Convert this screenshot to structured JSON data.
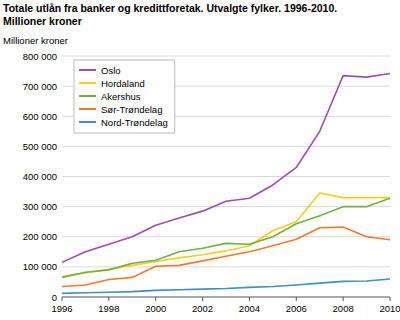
{
  "chart_data": {
    "type": "line",
    "title": "Totale utlån fra banker og kredittforetak. Utvalgte fylker. 1996-2010.",
    "subtitle": "Millioner kroner",
    "y_label": "Millioner kroner",
    "x": [
      1996,
      1997,
      1998,
      1999,
      2000,
      2001,
      2002,
      2003,
      2004,
      2005,
      2006,
      2007,
      2008,
      2009,
      2010
    ],
    "xlim": [
      1996,
      2010
    ],
    "xticks": [
      1996,
      1998,
      2000,
      2002,
      2004,
      2006,
      2008,
      2010
    ],
    "ylim": [
      0,
      800000
    ],
    "yticks": [
      0,
      {
        "value": 100000,
        "label": "100 000"
      },
      {
        "value": 200000,
        "label": "200 000"
      },
      {
        "value": 300000,
        "label": "300 000"
      },
      {
        "value": 400000,
        "label": "400 000"
      },
      {
        "value": 500000,
        "label": "500 000"
      },
      {
        "value": 600000,
        "label": "600 000"
      },
      {
        "value": 700000,
        "label": "700 000"
      },
      {
        "value": 800000,
        "label": "800 000"
      }
    ],
    "grid": true,
    "legend": "top-left",
    "series": [
      {
        "name": "Oslo",
        "color": "#9b4fb0",
        "values": [
          115000,
          150000,
          175000,
          200000,
          238000,
          262000,
          285000,
          318000,
          328000,
          372000,
          430000,
          550000,
          735000,
          730000,
          742000
        ]
      },
      {
        "name": "Hordaland",
        "color": "#f5d017",
        "values": [
          68000,
          80000,
          92000,
          105000,
          118000,
          130000,
          140000,
          153000,
          170000,
          220000,
          250000,
          345000,
          330000,
          330000,
          330000
        ]
      },
      {
        "name": "Akershus",
        "color": "#72b23f",
        "values": [
          65000,
          82000,
          90000,
          112000,
          122000,
          150000,
          162000,
          178000,
          175000,
          200000,
          243000,
          270000,
          300000,
          300000,
          328000
        ]
      },
      {
        "name": "Sør-Trøndelag",
        "color": "#f07c2a",
        "values": [
          35000,
          40000,
          58000,
          65000,
          102000,
          105000,
          120000,
          135000,
          150000,
          170000,
          192000,
          230000,
          232000,
          200000,
          190000
        ]
      },
      {
        "name": "Nord-Trøndelag",
        "color": "#3d8fc9",
        "values": [
          12000,
          14000,
          16000,
          18000,
          22000,
          24000,
          26000,
          28000,
          32000,
          35000,
          40000,
          46000,
          52000,
          53000,
          60000
        ]
      }
    ]
  }
}
